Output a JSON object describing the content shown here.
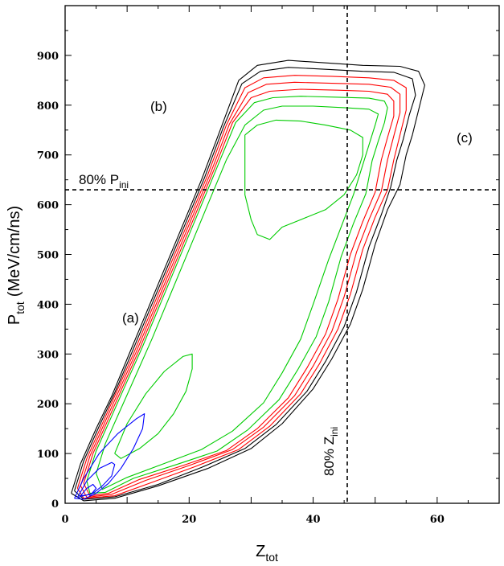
{
  "chart_data": {
    "type": "contour",
    "xlabel": "Z",
    "xlabel_sub": "tot",
    "ylabel": "P",
    "ylabel_sub": "tot",
    "ylabel_unit": "(MeV/cm/ns)",
    "xlim": [
      0,
      70
    ],
    "ylim": [
      0,
      1000
    ],
    "xticks": [
      0,
      20,
      40,
      60
    ],
    "yticks": [
      0,
      100,
      200,
      300,
      400,
      500,
      600,
      700,
      800,
      900
    ],
    "reference_lines": [
      {
        "orientation": "horizontal",
        "value": 630,
        "label": "80% P",
        "label_sub": "ini"
      },
      {
        "orientation": "vertical",
        "value": 45.5,
        "label": "80% Z",
        "label_sub": "ini"
      }
    ],
    "annotations": [
      {
        "text": "(a)",
        "x": 10.5,
        "y": 375
      },
      {
        "text": "(b)",
        "x": 15,
        "y": 795
      },
      {
        "text": "(c)",
        "x": 65,
        "y": 740
      }
    ],
    "contour_colors": {
      "outer": "#000000",
      "middle": "#ff0000",
      "inner": "#00cc00",
      "core": "#0000ff"
    },
    "contour_levels": [
      {
        "color": "outer",
        "points": [
          [
            1,
            20
          ],
          [
            2.5,
            80
          ],
          [
            5,
            150
          ],
          [
            7.5,
            215
          ],
          [
            10,
            290
          ],
          [
            13,
            380
          ],
          [
            16,
            470
          ],
          [
            19,
            560
          ],
          [
            22,
            650
          ],
          [
            25,
            750
          ],
          [
            28,
            850
          ],
          [
            31,
            880
          ],
          [
            36,
            890
          ],
          [
            42,
            885
          ],
          [
            48,
            880
          ],
          [
            54,
            878
          ],
          [
            57,
            868
          ],
          [
            58,
            840
          ],
          [
            57,
            790
          ],
          [
            56,
            740
          ],
          [
            55,
            700
          ],
          [
            54,
            640
          ],
          [
            52,
            590
          ],
          [
            50,
            520
          ],
          [
            48,
            430
          ],
          [
            46,
            360
          ],
          [
            43,
            290
          ],
          [
            40,
            230
          ],
          [
            35,
            160
          ],
          [
            30,
            110
          ],
          [
            23,
            70
          ],
          [
            15,
            35
          ],
          [
            8,
            10
          ],
          [
            3,
            5
          ],
          [
            1,
            20
          ]
        ]
      },
      {
        "color": "outer",
        "points": [
          [
            1.5,
            25
          ],
          [
            3,
            85
          ],
          [
            5.5,
            155
          ],
          [
            8,
            222
          ],
          [
            10.5,
            295
          ],
          [
            13.5,
            385
          ],
          [
            16.5,
            475
          ],
          [
            19.5,
            565
          ],
          [
            22.5,
            655
          ],
          [
            25.5,
            755
          ],
          [
            28.5,
            843
          ],
          [
            31.5,
            868
          ],
          [
            36,
            876
          ],
          [
            42,
            872
          ],
          [
            48,
            868
          ],
          [
            53,
            866
          ],
          [
            56,
            853
          ],
          [
            56.5,
            820
          ],
          [
            55.5,
            780
          ],
          [
            54.5,
            730
          ],
          [
            53.5,
            690
          ],
          [
            52.5,
            635
          ],
          [
            51,
            580
          ],
          [
            49,
            515
          ],
          [
            47,
            425
          ],
          [
            45,
            355
          ],
          [
            42,
            285
          ],
          [
            39,
            225
          ],
          [
            34,
            158
          ],
          [
            29,
            110
          ],
          [
            22,
            72
          ],
          [
            15,
            38
          ],
          [
            8,
            13
          ],
          [
            3,
            8
          ],
          [
            1.5,
            25
          ]
        ]
      },
      {
        "color": "middle",
        "points": [
          [
            2,
            30
          ],
          [
            3.5,
            90
          ],
          [
            6,
            160
          ],
          [
            8.5,
            230
          ],
          [
            11,
            300
          ],
          [
            14,
            390
          ],
          [
            17,
            480
          ],
          [
            20,
            570
          ],
          [
            23,
            660
          ],
          [
            26,
            760
          ],
          [
            29,
            835
          ],
          [
            32,
            855
          ],
          [
            37,
            860
          ],
          [
            43,
            858
          ],
          [
            49,
            855
          ],
          [
            53,
            850
          ],
          [
            55,
            835
          ],
          [
            55,
            790
          ],
          [
            54,
            740
          ],
          [
            53,
            690
          ],
          [
            52,
            630
          ],
          [
            50,
            575
          ],
          [
            48,
            510
          ],
          [
            46,
            420
          ],
          [
            44,
            350
          ],
          [
            41,
            280
          ],
          [
            38,
            220
          ],
          [
            33,
            155
          ],
          [
            28,
            108
          ],
          [
            21,
            74
          ],
          [
            14,
            42
          ],
          [
            8,
            15
          ],
          [
            3,
            10
          ],
          [
            2,
            30
          ]
        ]
      },
      {
        "color": "middle",
        "points": [
          [
            2.5,
            35
          ],
          [
            4,
            95
          ],
          [
            6.5,
            165
          ],
          [
            9,
            235
          ],
          [
            11.5,
            305
          ],
          [
            14.5,
            395
          ],
          [
            17.5,
            485
          ],
          [
            20.5,
            575
          ],
          [
            23.5,
            665
          ],
          [
            26.5,
            762
          ],
          [
            29.5,
            825
          ],
          [
            32.5,
            842
          ],
          [
            37,
            846
          ],
          [
            43,
            844
          ],
          [
            49,
            842
          ],
          [
            52.5,
            836
          ],
          [
            54,
            822
          ],
          [
            54,
            785
          ],
          [
            53,
            738
          ],
          [
            52,
            690
          ],
          [
            51,
            627
          ],
          [
            49,
            570
          ],
          [
            47,
            505
          ],
          [
            45,
            415
          ],
          [
            43,
            345
          ],
          [
            40,
            276
          ],
          [
            37,
            216
          ],
          [
            32,
            153
          ],
          [
            27,
            108
          ],
          [
            20,
            76
          ],
          [
            13,
            46
          ],
          [
            7.5,
            18
          ],
          [
            3.5,
            12
          ],
          [
            2.5,
            35
          ]
        ]
      },
      {
        "color": "middle",
        "points": [
          [
            3,
            40
          ],
          [
            4.5,
            100
          ],
          [
            7,
            170
          ],
          [
            9.5,
            240
          ],
          [
            12,
            310
          ],
          [
            15,
            400
          ],
          [
            18,
            490
          ],
          [
            21,
            580
          ],
          [
            24,
            670
          ],
          [
            27,
            765
          ],
          [
            30,
            815
          ],
          [
            33,
            828
          ],
          [
            38,
            832
          ],
          [
            44,
            830
          ],
          [
            49,
            828
          ],
          [
            52,
            822
          ],
          [
            53,
            808
          ],
          [
            53,
            778
          ],
          [
            52,
            735
          ],
          [
            51,
            690
          ],
          [
            50,
            625
          ],
          [
            48,
            566
          ],
          [
            46,
            500
          ],
          [
            44,
            410
          ],
          [
            42,
            340
          ],
          [
            39,
            272
          ],
          [
            36,
            212
          ],
          [
            31,
            150
          ],
          [
            26,
            106
          ],
          [
            19,
            76
          ],
          [
            12,
            48
          ],
          [
            7,
            20
          ],
          [
            4,
            15
          ],
          [
            3,
            40
          ]
        ]
      },
      {
        "color": "inner",
        "points": [
          [
            3.5,
            45
          ],
          [
            5,
            105
          ],
          [
            7.5,
            175
          ],
          [
            10,
            245
          ],
          [
            12.5,
            315
          ],
          [
            15.5,
            405
          ],
          [
            18.5,
            495
          ],
          [
            21.5,
            585
          ],
          [
            24.5,
            675
          ],
          [
            27.5,
            765
          ],
          [
            30.5,
            805
          ],
          [
            33.5,
            815
          ],
          [
            38,
            818
          ],
          [
            44,
            816
          ],
          [
            49,
            814
          ],
          [
            51.5,
            808
          ],
          [
            52,
            795
          ],
          [
            51.5,
            765
          ],
          [
            50.5,
            728
          ],
          [
            49.5,
            688
          ],
          [
            48.5,
            622
          ],
          [
            46.5,
            562
          ],
          [
            44.5,
            495
          ],
          [
            42.5,
            405
          ],
          [
            40.5,
            335
          ],
          [
            37.5,
            268
          ],
          [
            34.5,
            208
          ],
          [
            29.5,
            148
          ],
          [
            24.5,
            105
          ],
          [
            18,
            78
          ],
          [
            11,
            50
          ],
          [
            6.5,
            22
          ],
          [
            4,
            20
          ],
          [
            3.5,
            45
          ]
        ]
      },
      {
        "color": "inner",
        "points": [
          [
            5,
            60
          ],
          [
            6.5,
            120
          ],
          [
            9,
            190
          ],
          [
            11.5,
            260
          ],
          [
            14,
            330
          ],
          [
            17,
            420
          ],
          [
            20,
            510
          ],
          [
            23,
            600
          ],
          [
            26,
            690
          ],
          [
            29,
            760
          ],
          [
            32,
            790
          ],
          [
            35,
            798
          ],
          [
            40,
            798
          ],
          [
            45,
            795
          ],
          [
            49,
            792
          ],
          [
            50.5,
            782
          ],
          [
            50,
            760
          ],
          [
            49,
            720
          ],
          [
            48,
            680
          ],
          [
            46.5,
            620
          ],
          [
            44.5,
            555
          ],
          [
            42.5,
            490
          ],
          [
            40,
            400
          ],
          [
            38,
            330
          ],
          [
            35,
            262
          ],
          [
            32,
            202
          ],
          [
            27,
            145
          ],
          [
            22,
            108
          ],
          [
            16,
            80
          ],
          [
            10,
            52
          ],
          [
            6,
            28
          ],
          [
            5,
            60
          ]
        ]
      },
      {
        "color": "inner",
        "points": [
          [
            29,
            740
          ],
          [
            31,
            760
          ],
          [
            34,
            770
          ],
          [
            38,
            768
          ],
          [
            42,
            760
          ],
          [
            46,
            750
          ],
          [
            48,
            735
          ],
          [
            48,
            700
          ],
          [
            47,
            660
          ],
          [
            45,
            620
          ],
          [
            42,
            590
          ],
          [
            38,
            570
          ],
          [
            35,
            555
          ],
          [
            33,
            530
          ],
          [
            31,
            540
          ],
          [
            30,
            570
          ],
          [
            29,
            620
          ],
          [
            29,
            680
          ],
          [
            29,
            740
          ]
        ]
      },
      {
        "color": "inner",
        "points": [
          [
            8,
            100
          ],
          [
            10,
            160
          ],
          [
            13,
            220
          ],
          [
            16,
            265
          ],
          [
            19,
            295
          ],
          [
            20.5,
            300
          ],
          [
            20.5,
            270
          ],
          [
            19.5,
            225
          ],
          [
            17.5,
            180
          ],
          [
            15,
            140
          ],
          [
            12,
            110
          ],
          [
            9,
            90
          ],
          [
            8,
            100
          ]
        ]
      },
      {
        "color": "core",
        "points": [
          [
            1.5,
            10
          ],
          [
            3,
            50
          ],
          [
            5.5,
            100
          ],
          [
            8.5,
            140
          ],
          [
            11.5,
            170
          ],
          [
            12.8,
            180
          ],
          [
            12.5,
            150
          ],
          [
            11,
            110
          ],
          [
            9,
            70
          ],
          [
            7,
            40
          ],
          [
            5,
            20
          ],
          [
            3,
            8
          ],
          [
            1.5,
            10
          ]
        ]
      },
      {
        "color": "core",
        "points": [
          [
            2,
            12
          ],
          [
            3.5,
            45
          ],
          [
            5.5,
            70
          ],
          [
            7.5,
            82
          ],
          [
            8,
            78
          ],
          [
            7.5,
            55
          ],
          [
            6,
            35
          ],
          [
            4.5,
            20
          ],
          [
            2,
            12
          ]
        ]
      },
      {
        "color": "core",
        "points": [
          [
            2.5,
            15
          ],
          [
            3.5,
            30
          ],
          [
            4.5,
            38
          ],
          [
            5,
            30
          ],
          [
            4.2,
            18
          ],
          [
            2.5,
            15
          ]
        ]
      }
    ]
  }
}
